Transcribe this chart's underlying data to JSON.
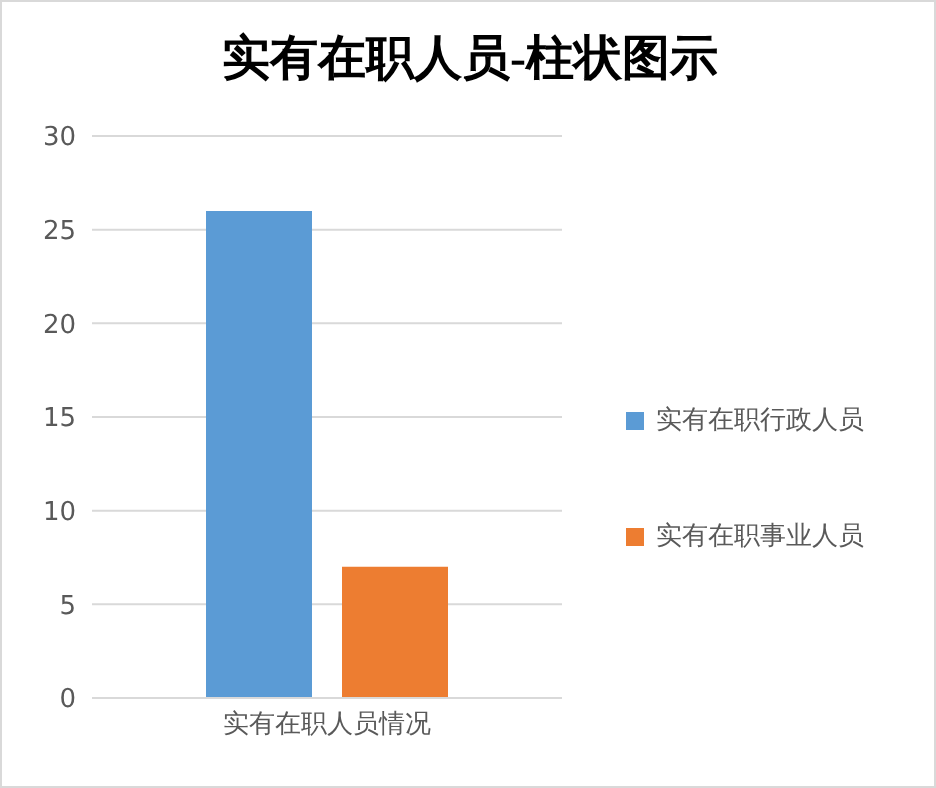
{
  "chart_data": {
    "type": "bar",
    "title": "实有在职人员-柱状图示",
    "categories": [
      "实有在职人员情况"
    ],
    "series": [
      {
        "name": "实有在职行政人员",
        "color": "#5b9bd5",
        "values": [
          26
        ]
      },
      {
        "name": "实有在职事业人员",
        "color": "#ed7d31",
        "values": [
          7
        ]
      }
    ],
    "ylim": [
      0,
      30
    ],
    "yticks": [
      0,
      5,
      10,
      15,
      20,
      25,
      30
    ],
    "grid": "y",
    "legend": "right"
  }
}
